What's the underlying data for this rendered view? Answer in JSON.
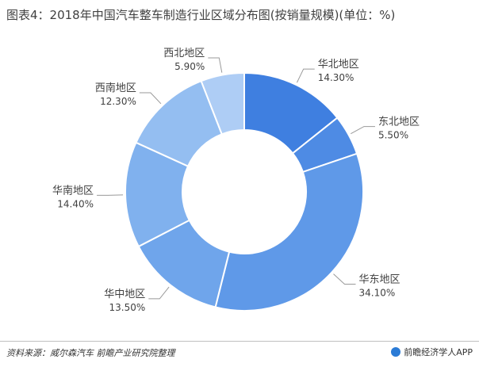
{
  "title": "图表4：2018年中国汽车整车制造行业区域分布图(按销量规模)(单位：%)",
  "chart_data": {
    "type": "pie",
    "subtype": "donut",
    "title": "图表4：2018年中国汽车整车制造行业区域分布图(按销量规模)(单位：%)",
    "categories": [
      "华北地区",
      "东北地区",
      "华东地区",
      "华中地区",
      "华南地区",
      "西南地区",
      "西北地区"
    ],
    "values": [
      14.3,
      5.5,
      34.1,
      13.5,
      14.4,
      12.3,
      5.9
    ],
    "value_labels": [
      "14.30%",
      "5.50%",
      "34.10%",
      "13.50%",
      "14.40%",
      "12.30%",
      "5.90%"
    ],
    "colors": [
      "#3f7fe0",
      "#4e8be4",
      "#5f99e8",
      "#6fa5eb",
      "#80b1ee",
      "#94bef1",
      "#aecdf5"
    ],
    "start_angle": "12 o'clock, clockwise"
  },
  "footer": {
    "source": "资料来源：威尔森汽车 前瞻产业研究院整理",
    "brand": "前瞻经济学人APP",
    "brand_icon": "qianzhan-logo-icon"
  }
}
